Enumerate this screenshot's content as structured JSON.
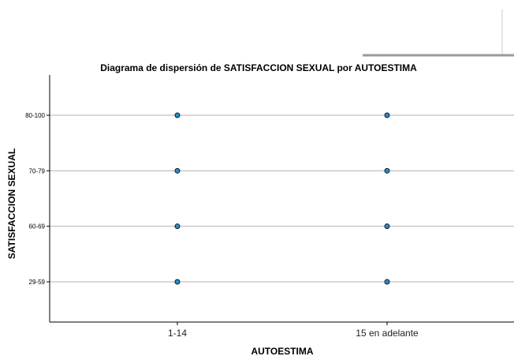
{
  "chart_data": {
    "type": "scatter",
    "title": "Diagrama de dispersión de SATISFACCION SEXUAL por AUTOESTIMA",
    "xlabel": "AUTOESTIMA",
    "ylabel": "SATISFACCION SEXUAL",
    "x_categories": [
      "1-14",
      "15 en adelante"
    ],
    "y_categories": [
      "29-59",
      "60-69",
      "70-79",
      "80-100"
    ],
    "points": [
      {
        "x": "1-14",
        "y": "80-100"
      },
      {
        "x": "1-14",
        "y": "70-79"
      },
      {
        "x": "1-14",
        "y": "60-69"
      },
      {
        "x": "1-14",
        "y": "29-59"
      },
      {
        "x": "15 en adelante",
        "y": "80-100"
      },
      {
        "x": "15 en adelante",
        "y": "70-79"
      },
      {
        "x": "15 en adelante",
        "y": "60-69"
      },
      {
        "x": "15 en adelante",
        "y": "29-59"
      }
    ],
    "grid": "horizontal",
    "legend": "none",
    "marker_color": "#1f8fd6",
    "marker_edge": "#1a1a1a",
    "grid_color": "#b3b3b3"
  }
}
